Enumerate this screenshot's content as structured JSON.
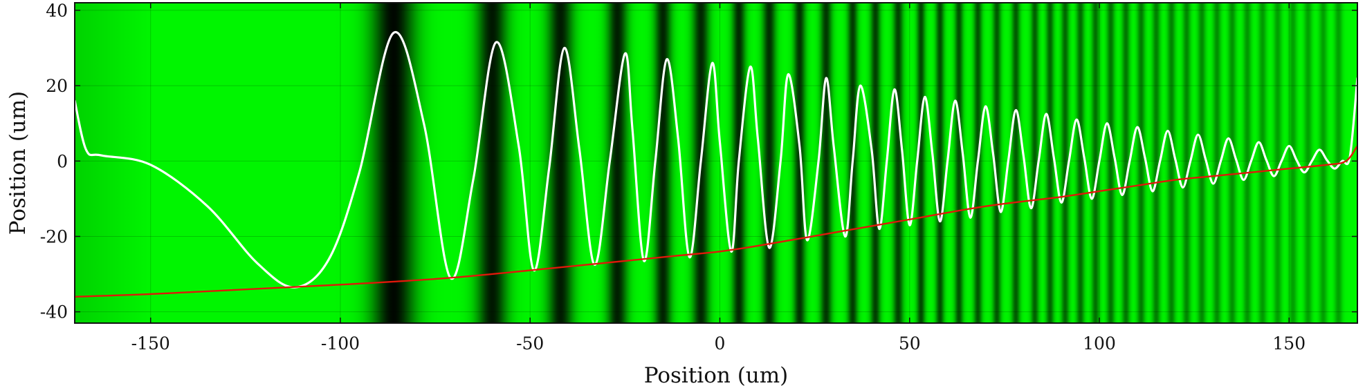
{
  "chart_data": {
    "type": "line",
    "title": "",
    "xlabel": "Position (um)",
    "ylabel": "Position (um)",
    "xlim": [
      -170,
      168
    ],
    "ylim": [
      42,
      -43
    ],
    "y_axis_reversed": true,
    "grid": true,
    "legend": "none",
    "x_ticks": [
      -150,
      -100,
      -50,
      0,
      50,
      100,
      150
    ],
    "x_tick_labels": [
      "-150",
      "-100",
      "-50",
      "0",
      "50",
      "100",
      "150"
    ],
    "y_ticks": [
      -40,
      -20,
      0,
      20,
      40
    ],
    "y_tick_labels": [
      "-40",
      "-20",
      "0",
      "20",
      "40"
    ],
    "background_image": {
      "description": "Airy-type intensity fringe pattern varying along x only",
      "colormap": [
        "#000000",
        "#00ff00"
      ],
      "bright_level": 0.85,
      "dark_fringes_x": [
        -86,
        -60,
        -42,
        -27,
        -15,
        -5,
        5,
        13,
        21,
        28,
        35,
        41,
        47,
        53,
        58,
        63,
        68,
        73,
        78,
        83,
        87,
        91,
        95,
        99,
        103,
        107,
        111,
        115,
        119,
        123,
        127,
        131,
        135,
        139,
        143,
        147,
        151,
        155,
        159,
        163
      ]
    },
    "series": [
      {
        "color": "#ffffff",
        "style": "oscillating line",
        "x": [
          -170,
          -167,
          -163,
          -150,
          -135,
          -122,
          -112,
          -103,
          -95,
          -86,
          -78,
          -71,
          -65,
          -59,
          -53,
          -49,
          -45,
          -41,
          -37,
          -33,
          -29,
          -25,
          -23,
          -20,
          -17,
          -14,
          -11,
          -8,
          -5,
          -2,
          0,
          3,
          5,
          8,
          10,
          13,
          16,
          18,
          21,
          23,
          26,
          28,
          30,
          33,
          35,
          37,
          40,
          42,
          44,
          46,
          48,
          50,
          52,
          54,
          56,
          58,
          60,
          62,
          64,
          66,
          68,
          70,
          72,
          74,
          76,
          78,
          80,
          82,
          84,
          86,
          88,
          90,
          92,
          94,
          96,
          98,
          100,
          102,
          104,
          106,
          108,
          110,
          112,
          114,
          116,
          118,
          120,
          122,
          124,
          126,
          128,
          130,
          132,
          134,
          136,
          138,
          140,
          142,
          144,
          146,
          148,
          150,
          152,
          154,
          156,
          158,
          160,
          162,
          164,
          166,
          168
        ],
        "y": [
          16,
          3,
          1.5,
          -1,
          -12,
          -27,
          -33.5,
          -26,
          -3,
          34,
          10,
          -31,
          -5,
          31.5,
          4,
          -29,
          -2,
          30,
          3,
          -27.5,
          0,
          28.5,
          8,
          -26.5,
          0,
          27,
          6,
          -25.5,
          0,
          26,
          5,
          -24,
          0,
          25,
          6,
          -23,
          0,
          23,
          4,
          -21,
          0,
          22,
          4,
          -20,
          0,
          20,
          3,
          -18,
          0,
          19,
          3,
          -17,
          0,
          17,
          2,
          -16,
          0,
          16,
          2,
          -15,
          0,
          14.5,
          2,
          -13.5,
          0,
          13.5,
          1.5,
          -12.5,
          0,
          12.5,
          1,
          -11,
          0,
          11,
          1,
          -10,
          0,
          10,
          1,
          -9,
          0,
          9,
          1,
          -8,
          0,
          8,
          0.5,
          -7,
          0,
          7,
          0.5,
          -6,
          0,
          6,
          0.5,
          -5,
          0,
          5,
          0.3,
          -4,
          0,
          4,
          0.2,
          -3,
          0,
          3,
          0.2,
          -2,
          0,
          1,
          22
        ]
      },
      {
        "color": "#e0180a",
        "style": "envelope line",
        "x": [
          -170,
          -150,
          -120,
          -100,
          -86,
          -70,
          -50,
          -30,
          -10,
          0,
          10,
          30,
          50,
          70,
          90,
          100,
          110,
          120,
          130,
          140,
          150,
          160,
          165,
          168
        ],
        "y": [
          -36,
          -35.3,
          -33.8,
          -32.8,
          -32,
          -30.9,
          -29,
          -27,
          -25,
          -24,
          -22.5,
          -19,
          -15.5,
          -12,
          -9.5,
          -8,
          -6.5,
          -5,
          -4,
          -3,
          -2,
          -1,
          0,
          4
        ]
      }
    ]
  }
}
